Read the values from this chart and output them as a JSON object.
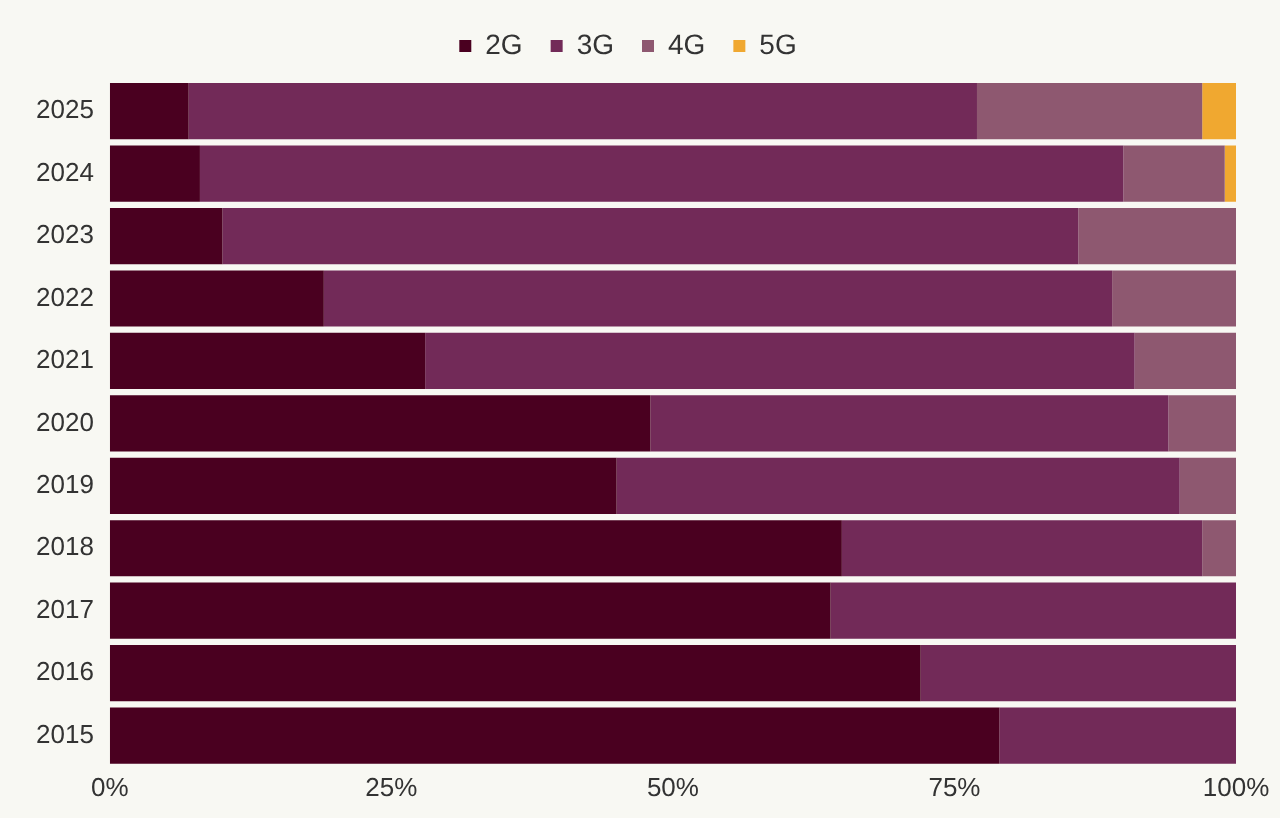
{
  "chart_data": {
    "type": "bar",
    "orientation": "horizontal",
    "stacked": true,
    "categories": [
      "2025",
      "2024",
      "2023",
      "2022",
      "2021",
      "2020",
      "2019",
      "2018",
      "2017",
      "2016",
      "2015"
    ],
    "series": [
      {
        "name": "2G",
        "color": "#4a0020",
        "values": [
          7,
          8,
          10,
          19,
          28,
          48,
          45,
          65,
          64,
          72,
          79
        ]
      },
      {
        "name": "3G",
        "color": "#722a58",
        "values": [
          70,
          82,
          76,
          70,
          63,
          46,
          50,
          32,
          36,
          28,
          21
        ]
      },
      {
        "name": "4G",
        "color": "#8e5870",
        "values": [
          20,
          9,
          14,
          11,
          9,
          6,
          5,
          3,
          0,
          0,
          0
        ]
      },
      {
        "name": "5G",
        "color": "#f0a830",
        "values": [
          3,
          1,
          0,
          0,
          0,
          0,
          0,
          0,
          0,
          0,
          0
        ]
      }
    ],
    "xlim": [
      0,
      100
    ],
    "xticks": [
      {
        "value": 0,
        "label": "0%"
      },
      {
        "value": 25,
        "label": "25%"
      },
      {
        "value": 50,
        "label": "50%"
      },
      {
        "value": 75,
        "label": "75%"
      },
      {
        "value": 100,
        "label": "100%"
      }
    ],
    "grid": false,
    "legend": "top"
  }
}
